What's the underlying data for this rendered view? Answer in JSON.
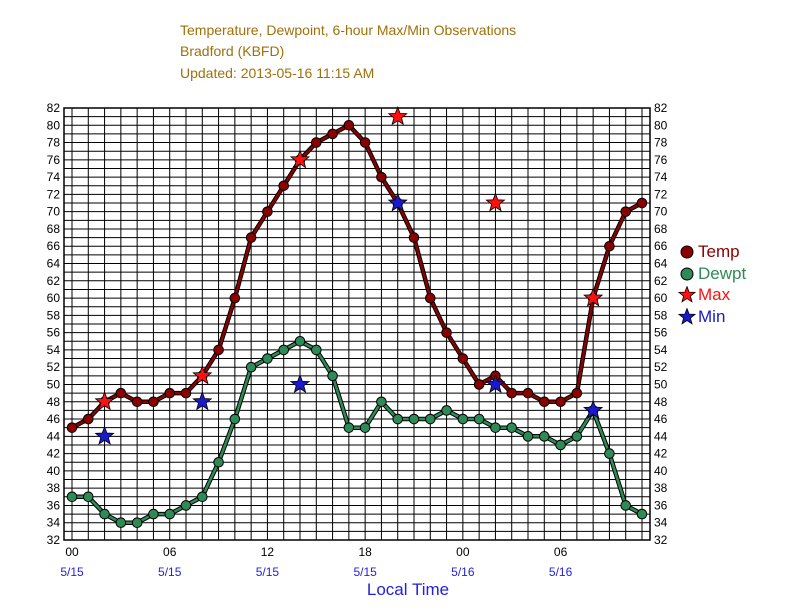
{
  "header": {
    "title": "Temperature, Dewpoint, 6-hour Max/Min Observations",
    "station": "Bradford (KBFD)",
    "updated": "Updated: 2013-05-16 11:15 AM"
  },
  "colors": {
    "temp": "#8b0000",
    "dewpt": "#2e8b57",
    "max": "#ff1010",
    "min": "#1a1acc",
    "title": "#a0700a",
    "date": "#2222dd"
  },
  "chart_data": {
    "type": "line",
    "title": "Temperature, Dewpoint, 6-hour Max/Min Observations",
    "xlabel": "Local Time",
    "ylabel": "",
    "ylim": [
      32,
      82
    ],
    "ytick_step": 2,
    "y_both_sides": true,
    "grid": true,
    "legend": "right",
    "x_range_hours": [
      0,
      35
    ],
    "x_ticks": [
      {
        "h": 0,
        "time": "00",
        "date": "5/15"
      },
      {
        "h": 6,
        "time": "06",
        "date": "5/15"
      },
      {
        "h": 12,
        "time": "12",
        "date": "5/15"
      },
      {
        "h": 18,
        "time": "18",
        "date": "5/15"
      },
      {
        "h": 24,
        "time": "00",
        "date": "5/16"
      },
      {
        "h": 30,
        "time": "06",
        "date": "5/16"
      }
    ],
    "series": [
      {
        "name": "Temp",
        "kind": "line-dot",
        "color": "#8b0000",
        "points": [
          [
            0,
            45
          ],
          [
            1,
            46
          ],
          [
            2,
            48
          ],
          [
            3,
            49
          ],
          [
            4,
            48
          ],
          [
            5,
            48
          ],
          [
            6,
            49
          ],
          [
            7,
            49
          ],
          [
            8,
            51
          ],
          [
            9,
            54
          ],
          [
            10,
            60
          ],
          [
            11,
            67
          ],
          [
            12,
            70
          ],
          [
            13,
            73
          ],
          [
            14,
            76
          ],
          [
            15,
            78
          ],
          [
            16,
            79
          ],
          [
            17,
            80
          ],
          [
            18,
            78
          ],
          [
            19,
            74
          ],
          [
            20,
            71
          ],
          [
            21,
            67
          ],
          [
            22,
            60
          ],
          [
            23,
            56
          ],
          [
            24,
            53
          ],
          [
            25,
            50
          ],
          [
            26,
            51
          ],
          [
            27,
            49
          ],
          [
            28,
            49
          ],
          [
            29,
            48
          ],
          [
            30,
            48
          ],
          [
            31,
            49
          ],
          [
            32,
            60
          ],
          [
            33,
            66
          ],
          [
            34,
            70
          ],
          [
            35,
            71
          ]
        ]
      },
      {
        "name": "Dewpt",
        "kind": "line-dot",
        "color": "#2e8b57",
        "points": [
          [
            0,
            37
          ],
          [
            1,
            37
          ],
          [
            2,
            35
          ],
          [
            3,
            34
          ],
          [
            4,
            34
          ],
          [
            5,
            35
          ],
          [
            6,
            35
          ],
          [
            7,
            36
          ],
          [
            8,
            37
          ],
          [
            9,
            41
          ],
          [
            10,
            46
          ],
          [
            11,
            52
          ],
          [
            12,
            53
          ],
          [
            13,
            54
          ],
          [
            14,
            55
          ],
          [
            15,
            54
          ],
          [
            16,
            51
          ],
          [
            17,
            45
          ],
          [
            18,
            45
          ],
          [
            19,
            48
          ],
          [
            20,
            46
          ],
          [
            21,
            46
          ],
          [
            22,
            46
          ],
          [
            23,
            47
          ],
          [
            24,
            46
          ],
          [
            25,
            46
          ],
          [
            26,
            45
          ],
          [
            27,
            45
          ],
          [
            28,
            44
          ],
          [
            29,
            44
          ],
          [
            30,
            43
          ],
          [
            31,
            44
          ],
          [
            32,
            47
          ],
          [
            33,
            42
          ],
          [
            34,
            36
          ],
          [
            35,
            35
          ]
        ]
      },
      {
        "name": "Max",
        "kind": "star",
        "color": "#ff1010",
        "points": [
          [
            2,
            48
          ],
          [
            8,
            51
          ],
          [
            14,
            76
          ],
          [
            20,
            81
          ],
          [
            26,
            71
          ],
          [
            32,
            60
          ]
        ]
      },
      {
        "name": "Min",
        "kind": "star",
        "color": "#1a1acc",
        "points": [
          [
            2,
            44
          ],
          [
            8,
            48
          ],
          [
            14,
            50
          ],
          [
            20,
            71
          ],
          [
            26,
            50
          ],
          [
            32,
            47
          ]
        ]
      }
    ]
  }
}
